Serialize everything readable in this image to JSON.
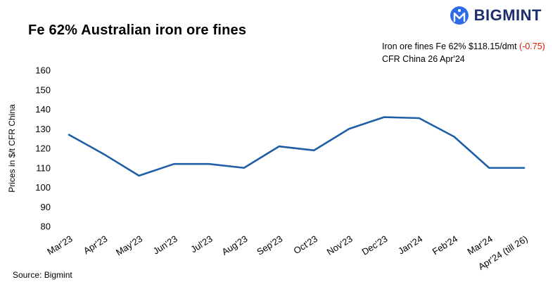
{
  "header": {
    "title": "Fe 62% Australian iron ore fines",
    "brand": "BIGMINT",
    "caption_price": "Iron ore fines Fe 62% $118.15/dmt ",
    "caption_change": "(-0.75)",
    "caption_date": "CFR China 26 Apr'24"
  },
  "chart_data": {
    "type": "line",
    "categories": [
      "Mar'23",
      "Apr'23",
      "May'23",
      "Jun'23",
      "Jul'23",
      "Aug'23",
      "Sep'23",
      "Oct'23",
      "Nov'23",
      "Dec'23",
      "Jan'24",
      "Feb'24",
      "Mar'24",
      "Apr'24 (till 26)"
    ],
    "series": [
      {
        "name": "Iron ore fines Fe 62% CFR China",
        "values": [
          127,
          117,
          106,
          112,
          112,
          110,
          121,
          119,
          130,
          136,
          135.5,
          126,
          110,
          110
        ]
      }
    ],
    "title": "Fe 62% Australian iron ore fines",
    "xlabel": "",
    "ylabel": "Prices in $/t CFR China",
    "ylim": [
      80,
      160
    ],
    "yticks": [
      80,
      90,
      100,
      110,
      120,
      130,
      140,
      150,
      160
    ],
    "grid": false,
    "legend_position": "none",
    "line_color": "#1f5fa8"
  },
  "colors": {
    "line": "#1f5fa8",
    "negative": "#e11900",
    "brand_navy": "#1d2e6e",
    "brand_blue": "#2e6be6"
  },
  "footer": {
    "source": "Source: Bigmint"
  }
}
